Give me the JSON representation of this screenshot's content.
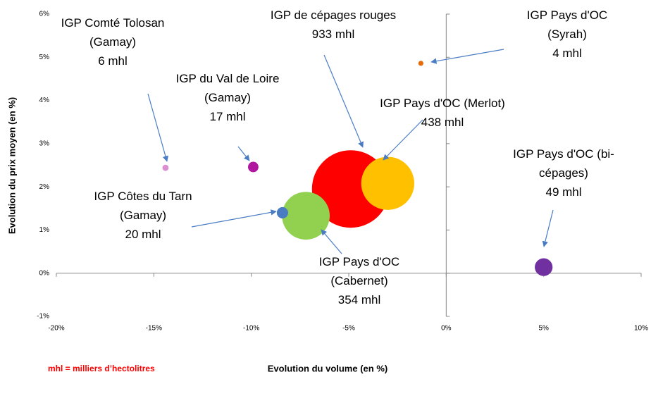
{
  "chart_data": {
    "type": "bubble",
    "xlabel": "Evolution du volume (en %)",
    "ylabel": "Evolution du prix moyen (en %)",
    "note": "mhl = milliers d’hectolitres",
    "xlim": [
      -20,
      10
    ],
    "ylim": [
      -1,
      6
    ],
    "xticks": [
      {
        "value": -20,
        "label": "-20%"
      },
      {
        "value": -15,
        "label": "-15%"
      },
      {
        "value": -10,
        "label": "-10%"
      },
      {
        "value": -5,
        "label": "-5%"
      },
      {
        "value": 0,
        "label": "0%"
      },
      {
        "value": 5,
        "label": "5%"
      },
      {
        "value": 10,
        "label": "10%"
      }
    ],
    "yticks": [
      {
        "value": -1,
        "label": "-1%"
      },
      {
        "value": 0,
        "label": "0%"
      },
      {
        "value": 1,
        "label": "1%"
      },
      {
        "value": 2,
        "label": "2%"
      },
      {
        "value": 3,
        "label": "3%"
      },
      {
        "value": 4,
        "label": "4%"
      },
      {
        "value": 5,
        "label": "5%"
      },
      {
        "value": 6,
        "label": "6%"
      }
    ],
    "series": [
      {
        "name": "IGP de cépages rouges",
        "color": "#ff0000",
        "x": [
          -4.9
        ],
        "values": [
          1.95
        ],
        "sizes": [
          933
        ],
        "value_labels": [
          "933 mhl"
        ]
      },
      {
        "name": "IGP Pays d'OC (Merlot)",
        "color": "#ffc000",
        "x": [
          -3.0
        ],
        "values": [
          2.08
        ],
        "sizes": [
          438
        ],
        "value_labels": [
          "438 mhl"
        ]
      },
      {
        "name": "IGP Pays d'OC (Cabernet)",
        "color": "#92d050",
        "x": [
          -7.2
        ],
        "values": [
          1.33
        ],
        "sizes": [
          354
        ],
        "value_labels": [
          "354 mhl"
        ]
      },
      {
        "name": "IGP Côtes du Tarn (Gamay)",
        "color": "#4a7cc4",
        "x": [
          -8.4
        ],
        "values": [
          1.4
        ],
        "sizes": [
          20
        ],
        "value_labels": [
          "20 mhl"
        ]
      },
      {
        "name": "IGP du Val de Loire (Gamay)",
        "color": "#b0179f",
        "x": [
          -9.9
        ],
        "values": [
          2.46
        ],
        "sizes": [
          17
        ],
        "value_labels": [
          "17 mhl"
        ]
      },
      {
        "name": "IGP Comté Tolosan (Gamay)",
        "color": "#d98fd0",
        "x": [
          -14.4
        ],
        "values": [
          2.44
        ],
        "sizes": [
          6
        ],
        "value_labels": [
          "6 mhl"
        ]
      },
      {
        "name": "IGP Pays d'OC (Syrah)",
        "color": "#e46c0a",
        "x": [
          -1.3
        ],
        "values": [
          4.86
        ],
        "sizes": [
          4
        ],
        "value_labels": [
          "4 mhl"
        ]
      },
      {
        "name": "IGP Pays d'OC (bi-cépages)",
        "color": "#7030a0",
        "x": [
          5.0
        ],
        "values": [
          0.14
        ],
        "sizes": [
          49
        ],
        "value_labels": [
          "49 mhl"
        ]
      }
    ]
  }
}
